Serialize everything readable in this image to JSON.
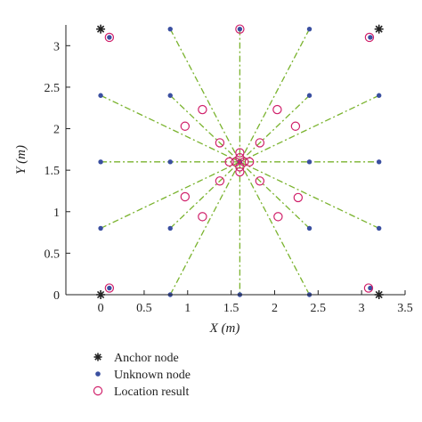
{
  "chart_data": {
    "type": "scatter",
    "xlabel": "X (m)",
    "ylabel": "Y (m)",
    "xlim": [
      -0.4,
      3.5
    ],
    "ylim": [
      0,
      3.25
    ],
    "xticks": [
      0,
      0.5,
      1,
      1.5,
      2,
      2.5,
      3,
      3.5
    ],
    "xtick_labels": [
      "0",
      "0.5",
      "1",
      "1.5",
      "2",
      "2.5",
      "3",
      "3.5"
    ],
    "yticks": [
      0,
      0.5,
      1,
      1.5,
      2,
      2.5,
      3
    ],
    "ytick_labels": [
      "0",
      "0.5",
      "1",
      "1.5",
      "2",
      "2.5",
      "3"
    ],
    "grid": false,
    "legend": {
      "placement": "below",
      "entries": [
        {
          "name": "Anchor node",
          "marker": "star",
          "color": "#222222"
        },
        {
          "name": "Unknown node",
          "marker": "dot",
          "color": "#3a4fa0"
        },
        {
          "name": "Location result",
          "marker": "circle",
          "color": "#d0206a"
        }
      ]
    },
    "colors": {
      "anchor": "#222222",
      "unknown": "#3a4fa0",
      "result": "#d0206a",
      "trace_line": "#7ab32e",
      "axis": "#222222"
    },
    "series": [
      {
        "name": "Anchor node",
        "points": [
          [
            0,
            3.2
          ],
          [
            3.2,
            3.2
          ],
          [
            0,
            0
          ],
          [
            3.2,
            0
          ]
        ]
      },
      {
        "name": "Unknown node",
        "points": [
          [
            0.1,
            3.1
          ],
          [
            0.8,
            3.2
          ],
          [
            1.6,
            3.2
          ],
          [
            2.4,
            3.2
          ],
          [
            3.1,
            3.1
          ],
          [
            0,
            2.4
          ],
          [
            0.8,
            2.4
          ],
          [
            2.4,
            2.4
          ],
          [
            3.2,
            2.4
          ],
          [
            0,
            1.6
          ],
          [
            0.8,
            1.6
          ],
          [
            1.6,
            1.6
          ],
          [
            2.4,
            1.6
          ],
          [
            3.2,
            1.6
          ],
          [
            0,
            0.8
          ],
          [
            0.8,
            0.8
          ],
          [
            2.4,
            0.8
          ],
          [
            3.2,
            0.8
          ],
          [
            0.1,
            0.08
          ],
          [
            0.8,
            0
          ],
          [
            1.6,
            0
          ],
          [
            2.4,
            0
          ],
          [
            3.1,
            0.08
          ]
        ]
      },
      {
        "name": "Location result",
        "points": [
          [
            0.1,
            3.1
          ],
          [
            1.6,
            3.2
          ],
          [
            3.09,
            3.1
          ],
          [
            1.17,
            2.23
          ],
          [
            0.97,
            2.03
          ],
          [
            1.37,
            1.83
          ],
          [
            2.03,
            2.23
          ],
          [
            2.24,
            2.03
          ],
          [
            1.83,
            1.83
          ],
          [
            1.6,
            1.71
          ],
          [
            1.6,
            1.65
          ],
          [
            1.48,
            1.6
          ],
          [
            1.55,
            1.6
          ],
          [
            1.65,
            1.6
          ],
          [
            1.71,
            1.6
          ],
          [
            1.6,
            1.54
          ],
          [
            1.6,
            1.48
          ],
          [
            1.37,
            1.37
          ],
          [
            0.97,
            1.18
          ],
          [
            1.17,
            0.94
          ],
          [
            1.83,
            1.37
          ],
          [
            2.27,
            1.17
          ],
          [
            2.04,
            0.94
          ],
          [
            0.1,
            0.08
          ],
          [
            3.08,
            0.08
          ]
        ]
      }
    ],
    "trace_lines": [
      [
        [
          1.6,
          3.2
        ],
        [
          1.6,
          0
        ]
      ],
      [
        [
          0,
          1.6
        ],
        [
          3.2,
          1.6
        ]
      ],
      [
        [
          0.8,
          3.2
        ],
        [
          1.6,
          1.6
        ]
      ],
      [
        [
          2.4,
          3.2
        ],
        [
          1.6,
          1.6
        ]
      ],
      [
        [
          0.8,
          0
        ],
        [
          1.6,
          1.6
        ]
      ],
      [
        [
          2.4,
          0
        ],
        [
          1.6,
          1.6
        ]
      ],
      [
        [
          0,
          2.4
        ],
        [
          1.6,
          1.6
        ]
      ],
      [
        [
          3.2,
          2.4
        ],
        [
          1.6,
          1.6
        ]
      ],
      [
        [
          0,
          0.8
        ],
        [
          1.6,
          1.6
        ]
      ],
      [
        [
          3.2,
          0.8
        ],
        [
          1.6,
          1.6
        ]
      ],
      [
        [
          0.8,
          2.4
        ],
        [
          1.6,
          1.6
        ]
      ],
      [
        [
          2.4,
          2.4
        ],
        [
          1.6,
          1.6
        ]
      ],
      [
        [
          0.8,
          0.8
        ],
        [
          1.6,
          1.6
        ]
      ],
      [
        [
          2.4,
          0.8
        ],
        [
          1.6,
          1.6
        ]
      ]
    ]
  }
}
